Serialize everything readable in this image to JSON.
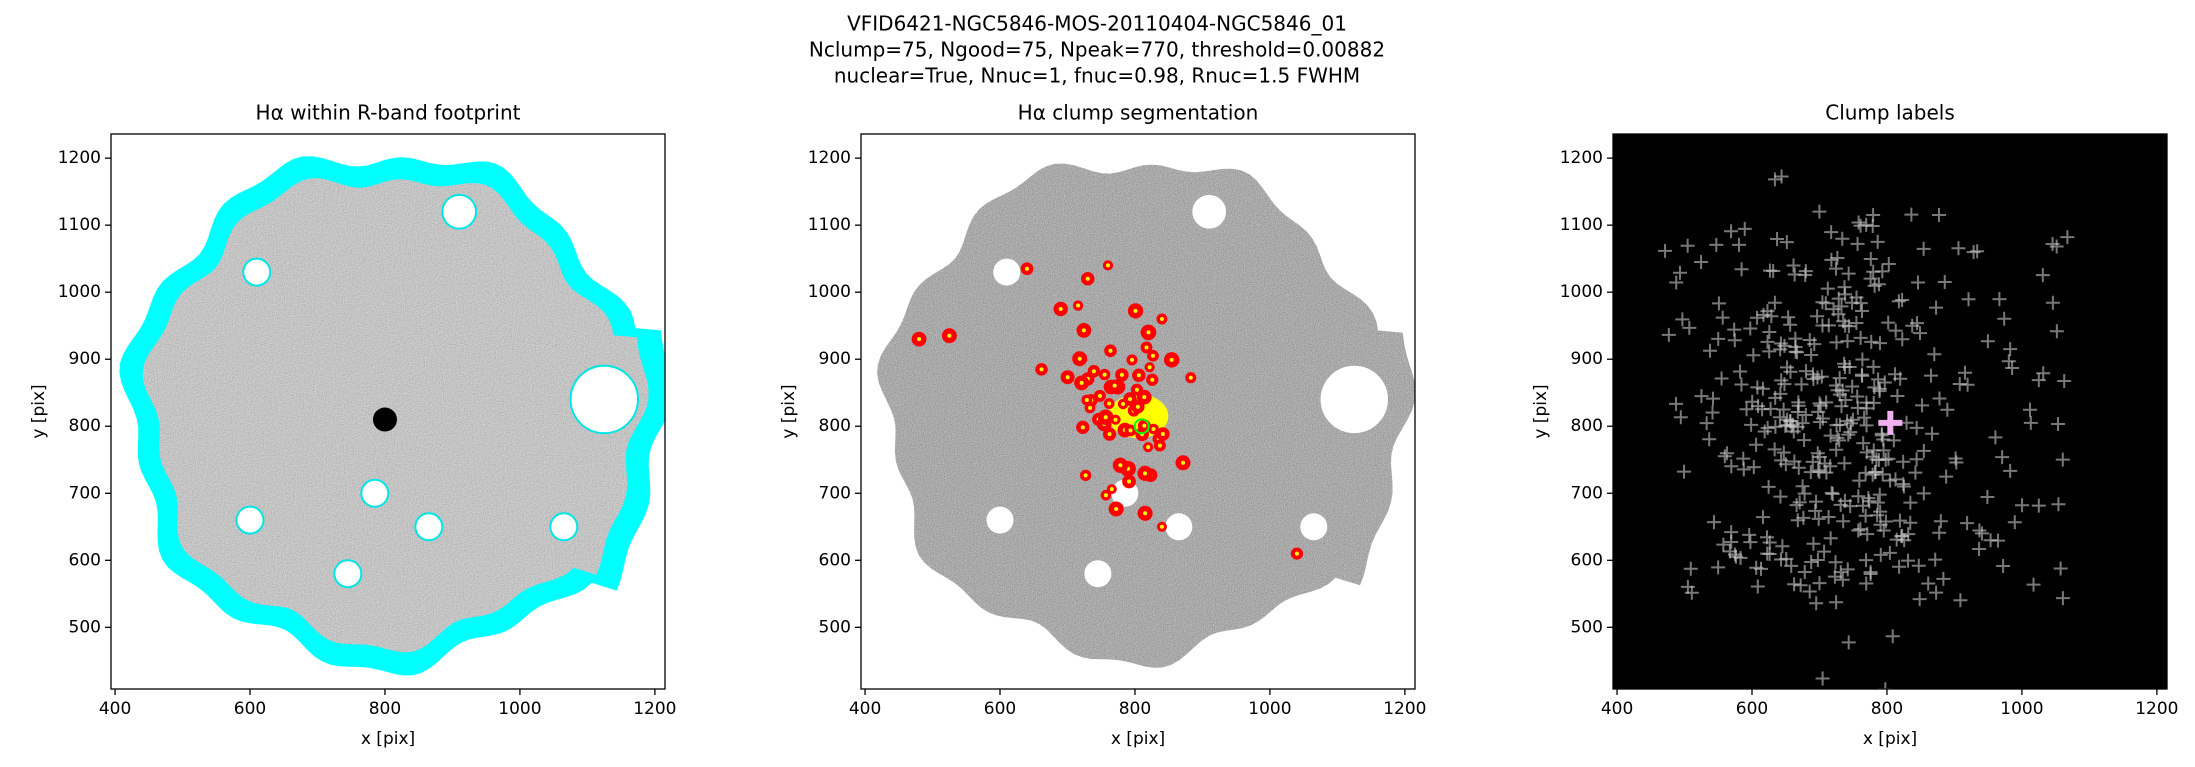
{
  "figure_title": [
    "VFID6421-NGC5846-MOS-20110404-NGC5846_01",
    "Nclump=75, Ngood=75, Npeak=770, threshold=0.00882",
    "nuclear=True, Nnuc=1, fnuc=0.98, Rnuc=1.5 FWHM"
  ],
  "chart_data": [
    {
      "type": "image",
      "title": "Hα within R-band footprint",
      "xlabel": "x [pix]",
      "ylabel": "y [pix]",
      "background": "#ffffff",
      "xlim": [
        394,
        1215
      ],
      "ylim": [
        408,
        1236
      ],
      "xticks": [
        400,
        600,
        800,
        1000,
        1200
      ],
      "yticks": [
        500,
        600,
        700,
        800,
        900,
        1000,
        1100,
        1200
      ]
    },
    {
      "type": "image",
      "title": "Hα clump segmentation",
      "xlabel": "x [pix]",
      "ylabel": "y [pix]",
      "background": "#ffffff",
      "xlim": [
        394,
        1215
      ],
      "ylim": [
        408,
        1236
      ],
      "xticks": [
        400,
        600,
        800,
        1000,
        1200
      ],
      "yticks": [
        500,
        600,
        700,
        800,
        900,
        1000,
        1100,
        1200
      ]
    },
    {
      "type": "image",
      "title": "Clump labels",
      "xlabel": "x [pix]",
      "ylabel": "y [pix]",
      "background": "#000000",
      "xlim": [
        394,
        1215
      ],
      "ylim": [
        408,
        1236
      ],
      "xticks": [
        400,
        600,
        800,
        1000,
        1200
      ],
      "yticks": [
        500,
        600,
        700,
        800,
        900,
        1000,
        1100,
        1200
      ]
    }
  ]
}
